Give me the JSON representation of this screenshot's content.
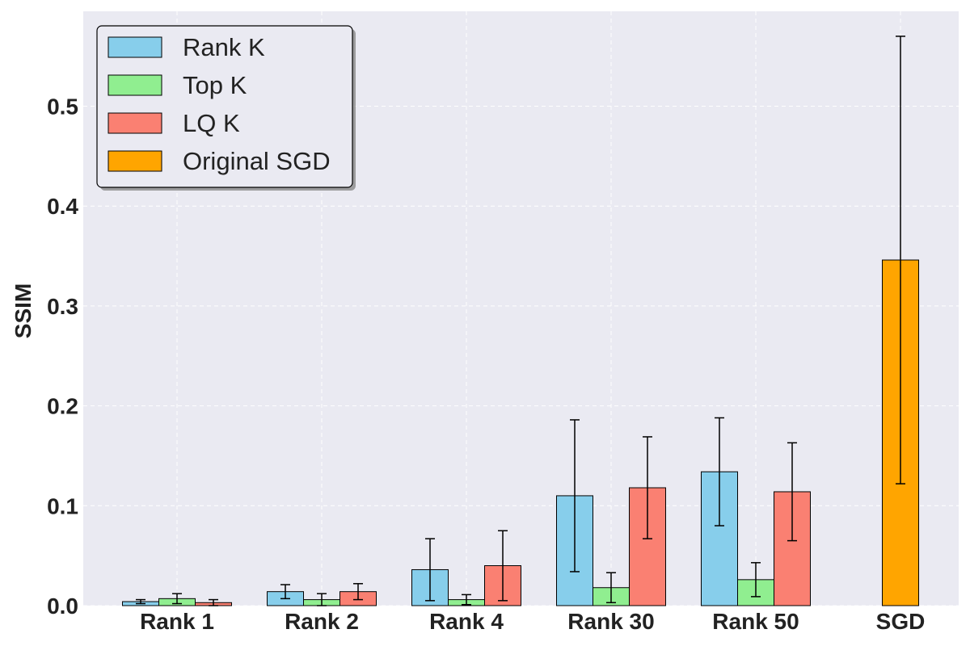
{
  "chart_data": {
    "type": "bar",
    "title": "",
    "xlabel": "",
    "ylabel": "SSIM",
    "ylim": [
      0,
      0.595
    ],
    "yticks": [
      0.0,
      0.1,
      0.2,
      0.3,
      0.4,
      0.5
    ],
    "ytick_labels": [
      "0.0",
      "0.1",
      "0.2",
      "0.3",
      "0.4",
      "0.5"
    ],
    "grid": true,
    "legend_position": "top-left",
    "categories": [
      "Rank 1",
      "Rank 2",
      "Rank 4",
      "Rank 30",
      "Rank 50",
      "SGD"
    ],
    "series": [
      {
        "name": "Rank K",
        "color": "#87CEEB",
        "values": [
          0.004,
          0.014,
          0.036,
          0.11,
          0.134,
          null
        ],
        "errors": [
          0.002,
          0.007,
          0.031,
          0.076,
          0.054,
          null
        ]
      },
      {
        "name": "Top K",
        "color": "#90EE90",
        "values": [
          0.007,
          0.006,
          0.006,
          0.018,
          0.026,
          null
        ],
        "errors": [
          0.005,
          0.006,
          0.005,
          0.015,
          0.017,
          null
        ]
      },
      {
        "name": "LQ K",
        "color": "#FA8072",
        "values": [
          0.003,
          0.014,
          0.04,
          0.118,
          0.114,
          null
        ],
        "errors": [
          0.003,
          0.008,
          0.035,
          0.051,
          0.049,
          null
        ]
      },
      {
        "name": "Original SGD",
        "color": "#FFA500",
        "values": [
          null,
          null,
          null,
          null,
          null,
          0.346
        ],
        "errors": [
          null,
          null,
          null,
          null,
          null,
          0.224
        ]
      }
    ]
  }
}
